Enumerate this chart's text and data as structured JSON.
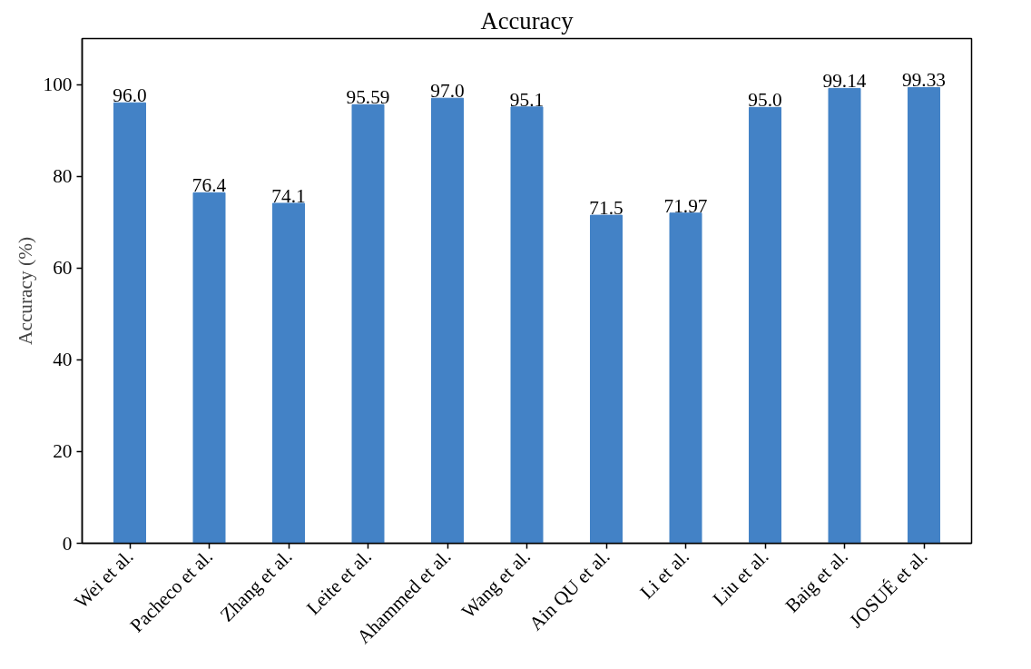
{
  "chart_data": {
    "type": "bar",
    "title": "Accuracy",
    "ylabel": "Accuracy (%)",
    "categories": [
      "Wei et al.",
      "Pacheco et al.",
      "Zhang et al.",
      "Leite et al.",
      "Ahammed et al.",
      "Wang et al.",
      "Ain QU et al.",
      "Li et al.",
      "Liu et al.",
      "Baig et al.",
      "JOSUÉ et al."
    ],
    "values": [
      96.0,
      76.4,
      74.1,
      95.59,
      97.0,
      95.1,
      71.5,
      71.97,
      95.0,
      99.14,
      99.33
    ],
    "value_labels": [
      "96.0",
      "76.4",
      "74.1",
      "95.59",
      "97.0",
      "95.1",
      "71.5",
      "71.97",
      "95.0",
      "99.14",
      "99.33"
    ],
    "color": "#4382c6",
    "ylim": [
      0,
      110
    ],
    "yticks": [
      0,
      20,
      40,
      60,
      80,
      100
    ],
    "grid": false
  }
}
